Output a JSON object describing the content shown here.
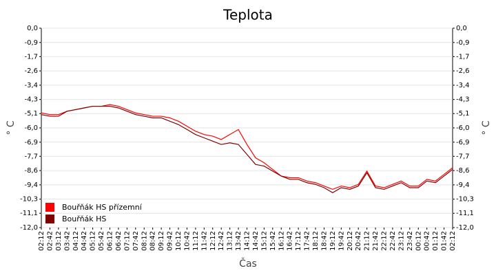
{
  "chart_data": {
    "type": "line",
    "title": "Teplota",
    "x_label": "Čas",
    "y_label": "° C",
    "categories": [
      "02:12",
      "02:42",
      "03:12",
      "03:42",
      "04:12",
      "04:42",
      "05:12",
      "05:42",
      "06:12",
      "06:42",
      "07:12",
      "07:42",
      "08:12",
      "08:42",
      "09:12",
      "09:42",
      "10:12",
      "10:42",
      "11:12",
      "11:42",
      "12:12",
      "12:42",
      "13:12",
      "13:42",
      "14:12",
      "14:42",
      "15:12",
      "15:42",
      "16:12",
      "16:42",
      "17:12",
      "17:42",
      "18:12",
      "18:42",
      "19:12",
      "19:42",
      "20:12",
      "20:42",
      "21:12",
      "21:42",
      "22:12",
      "22:42",
      "23:12",
      "23:42",
      "00:12",
      "00:42",
      "01:12",
      "01:42",
      "02:12"
    ],
    "series": [
      {
        "name": "Bouřňák HS přízemní",
        "color": "#ff0000",
        "values": [
          -5.1,
          -5.2,
          -5.2,
          -5.0,
          -4.9,
          -4.8,
          -4.7,
          -4.7,
          -4.6,
          -4.7,
          -4.9,
          -5.1,
          -5.2,
          -5.3,
          -5.3,
          -5.4,
          -5.6,
          -5.9,
          -6.2,
          -6.4,
          -6.5,
          -6.7,
          -6.4,
          -6.1,
          -7.0,
          -7.8,
          -8.1,
          -8.5,
          -8.9,
          -9.0,
          -9.0,
          -9.2,
          -9.3,
          -9.5,
          -9.7,
          -9.5,
          -9.6,
          -9.4,
          -8.6,
          -9.5,
          -9.6,
          -9.4,
          -9.2,
          -9.5,
          -9.5,
          -9.1,
          -9.2,
          -8.8,
          -8.4
        ]
      },
      {
        "name": "Bouřňák HS",
        "color": "#800000",
        "values": [
          -5.2,
          -5.3,
          -5.3,
          -5.0,
          -4.9,
          -4.8,
          -4.7,
          -4.7,
          -4.7,
          -4.8,
          -5.0,
          -5.2,
          -5.3,
          -5.4,
          -5.4,
          -5.6,
          -5.8,
          -6.1,
          -6.4,
          -6.6,
          -6.8,
          -7.0,
          -6.9,
          -7.0,
          -7.6,
          -8.2,
          -8.3,
          -8.6,
          -8.9,
          -9.1,
          -9.1,
          -9.3,
          -9.4,
          -9.6,
          -9.9,
          -9.6,
          -9.7,
          -9.5,
          -8.7,
          -9.6,
          -9.7,
          -9.5,
          -9.3,
          -9.6,
          -9.6,
          -9.2,
          -9.3,
          -8.9,
          -8.5
        ]
      }
    ],
    "ylim": [
      -12,
      0
    ],
    "yticks": [
      {
        "value": 0,
        "label": "0,0"
      },
      {
        "value": -0.86,
        "label": "-0,9"
      },
      {
        "value": -1.71,
        "label": "-1,7"
      },
      {
        "value": -2.57,
        "label": "-2,6"
      },
      {
        "value": -3.43,
        "label": "-3,4"
      },
      {
        "value": -4.29,
        "label": "-4,3"
      },
      {
        "value": -5.14,
        "label": "-5,1"
      },
      {
        "value": -6,
        "label": "-6,0"
      },
      {
        "value": -6.86,
        "label": "-6,9"
      },
      {
        "value": -7.71,
        "label": "-7,7"
      },
      {
        "value": -8.57,
        "label": "-8,6"
      },
      {
        "value": -9.43,
        "label": "-9,4"
      },
      {
        "value": -10.29,
        "label": "-10,3"
      },
      {
        "value": -11.14,
        "label": "-11,1"
      },
      {
        "value": -12,
        "label": "-12,0"
      }
    ],
    "grid": true,
    "legend": "lower left"
  }
}
